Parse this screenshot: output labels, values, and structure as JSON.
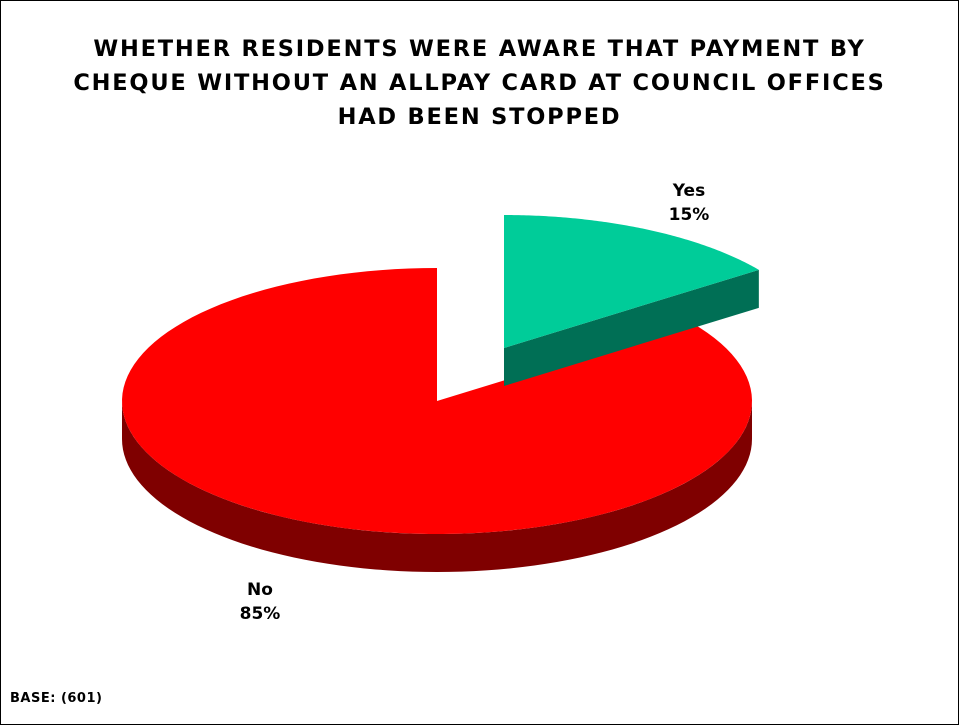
{
  "chart_data": {
    "type": "pie",
    "title": [
      "WHETHER RESIDENTS WERE AWARE THAT PAYMENT BY",
      "CHEQUE WITHOUT AN ALLPAY CARD AT COUNCIL OFFICES",
      "HAD BEEN STOPPED"
    ],
    "slices": [
      {
        "label": "Yes",
        "value": 15,
        "value_label": "15%",
        "color": "#00cc99",
        "side_color": "#006f55",
        "exploded": true
      },
      {
        "label": "No",
        "value": 85,
        "value_label": "85%",
        "color": "#ff0000",
        "side_color": "#7f0000",
        "exploded": false
      }
    ],
    "three_d": true,
    "legend": "none",
    "base_note": "BASE: (601)"
  }
}
